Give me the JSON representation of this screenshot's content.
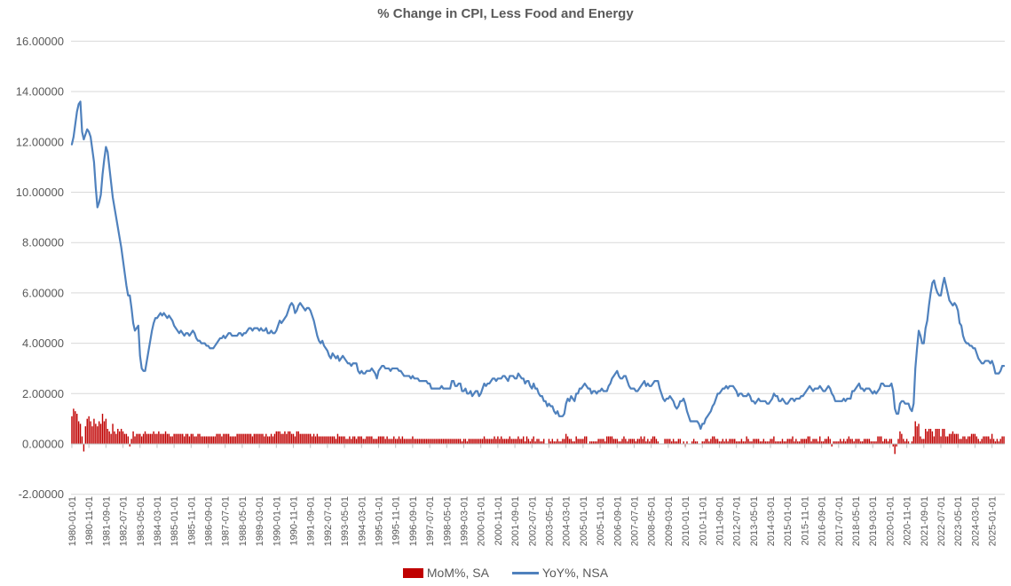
{
  "colors": {
    "background": "#FFFFFF",
    "title_text": "#595959",
    "axis_text": "#595959",
    "gridline": "#D9D9D9",
    "axis_line": "#BFBFBF",
    "bar_series": "#C00000",
    "line_series": "#4F81BD"
  },
  "chart_data": {
    "type": "bar+line combo",
    "title": "% Change in CPI, Less Food and Energy",
    "x_frequency": "monthly",
    "x_start": "1980-01",
    "x_end": "2025-08",
    "ylim": [
      -2,
      16
    ],
    "y_tick_step": 2,
    "grid": "horizontal",
    "legend_position": "bottom",
    "y_tick_labels": [
      "-2.00000",
      "0.00000",
      "2.00000",
      "4.00000",
      "6.00000",
      "8.00000",
      "10.00000",
      "12.00000",
      "14.00000",
      "16.00000"
    ],
    "x_tick_interval_months": 10,
    "x_tick_labels": [
      "1980-01-01",
      "1980-11-01",
      "1981-09-01",
      "1982-07-01",
      "1983-05-01",
      "1984-03-01",
      "1985-01-01",
      "1985-11-01",
      "1986-09-01",
      "1987-07-01",
      "1988-05-01",
      "1989-03-01",
      "1990-01-01",
      "1990-11-01",
      "1991-09-01",
      "1992-07-01",
      "1993-05-01",
      "1994-03-01",
      "1995-01-01",
      "1995-11-01",
      "1996-09-01",
      "1997-07-01",
      "1998-05-01",
      "1999-03-01",
      "2000-01-01",
      "2000-11-01",
      "2001-09-01",
      "2002-07-01",
      "2003-05-01",
      "2004-03-01",
      "2005-01-01",
      "2005-11-01",
      "2006-09-01",
      "2007-07-01",
      "2008-05-01",
      "2009-03-01",
      "2010-01-01",
      "2010-11-01",
      "2011-09-01",
      "2012-07-01",
      "2013-05-01",
      "2014-03-01",
      "2015-01-01",
      "2015-11-01",
      "2016-09-01",
      "2017-07-01",
      "2018-05-01",
      "2019-03-01",
      "2020-01-01",
      "2020-11-01",
      "2021-09-01",
      "2022-07-01",
      "2023-05-01",
      "2024-03-01",
      "2025-01-01"
    ],
    "series": [
      {
        "name": "MoM%, SA",
        "type": "bar",
        "color": "#C00000",
        "values": [
          1.1,
          1.4,
          1.3,
          1.2,
          0.9,
          0.8,
          0.3,
          -0.3,
          0.7,
          1.0,
          1.1,
          0.9,
          0.7,
          1.0,
          0.8,
          0.7,
          0.9,
          0.8,
          1.2,
          0.9,
          1.0,
          0.6,
          0.5,
          0.4,
          0.8,
          0.5,
          0.4,
          0.6,
          0.5,
          0.6,
          0.5,
          0.4,
          0.4,
          0.3,
          -0.1,
          0.2,
          0.5,
          0.3,
          0.4,
          0.4,
          0.4,
          0.3,
          0.4,
          0.5,
          0.4,
          0.4,
          0.4,
          0.4,
          0.5,
          0.4,
          0.4,
          0.5,
          0.4,
          0.4,
          0.4,
          0.5,
          0.4,
          0.4,
          0.3,
          0.3,
          0.4,
          0.4,
          0.4,
          0.4,
          0.4,
          0.4,
          0.3,
          0.4,
          0.4,
          0.3,
          0.4,
          0.4,
          0.3,
          0.3,
          0.4,
          0.4,
          0.3,
          0.3,
          0.3,
          0.3,
          0.3,
          0.3,
          0.3,
          0.3,
          0.3,
          0.4,
          0.4,
          0.4,
          0.3,
          0.4,
          0.4,
          0.4,
          0.4,
          0.3,
          0.3,
          0.3,
          0.3,
          0.4,
          0.4,
          0.4,
          0.4,
          0.4,
          0.4,
          0.4,
          0.4,
          0.4,
          0.3,
          0.4,
          0.4,
          0.4,
          0.4,
          0.4,
          0.4,
          0.3,
          0.4,
          0.3,
          0.3,
          0.4,
          0.3,
          0.4,
          0.5,
          0.5,
          0.5,
          0.4,
          0.4,
          0.5,
          0.4,
          0.5,
          0.5,
          0.4,
          0.4,
          0.3,
          0.5,
          0.5,
          0.4,
          0.4,
          0.4,
          0.4,
          0.4,
          0.4,
          0.4,
          0.3,
          0.4,
          0.3,
          0.4,
          0.3,
          0.3,
          0.3,
          0.3,
          0.3,
          0.3,
          0.3,
          0.3,
          0.3,
          0.3,
          0.2,
          0.4,
          0.3,
          0.3,
          0.3,
          0.3,
          0.2,
          0.2,
          0.3,
          0.2,
          0.3,
          0.3,
          0.2,
          0.3,
          0.3,
          0.3,
          0.2,
          0.2,
          0.3,
          0.3,
          0.3,
          0.3,
          0.2,
          0.2,
          0.2,
          0.3,
          0.3,
          0.3,
          0.3,
          0.2,
          0.3,
          0.2,
          0.2,
          0.2,
          0.3,
          0.2,
          0.2,
          0.3,
          0.2,
          0.3,
          0.2,
          0.2,
          0.2,
          0.2,
          0.2,
          0.3,
          0.2,
          0.2,
          0.2,
          0.2,
          0.2,
          0.2,
          0.2,
          0.2,
          0.2,
          0.2,
          0.2,
          0.2,
          0.2,
          0.2,
          0.2,
          0.2,
          0.2,
          0.2,
          0.2,
          0.2,
          0.2,
          0.2,
          0.2,
          0.2,
          0.2,
          0.2,
          0.2,
          0.2,
          0.1,
          0.2,
          0.2,
          0.1,
          0.2,
          0.2,
          0.2,
          0.2,
          0.2,
          0.2,
          0.2,
          0.2,
          0.2,
          0.3,
          0.2,
          0.2,
          0.2,
          0.2,
          0.2,
          0.3,
          0.2,
          0.3,
          0.2,
          0.3,
          0.2,
          0.2,
          0.2,
          0.2,
          0.3,
          0.2,
          0.2,
          0.2,
          0.2,
          0.3,
          0.2,
          0.2,
          0.3,
          0.1,
          0.3,
          0.2,
          0.1,
          0.2,
          0.3,
          0.1,
          0.2,
          0.2,
          0.1,
          0.1,
          0.2,
          0.0,
          0.0,
          0.2,
          0.1,
          0.2,
          0.1,
          0.1,
          0.2,
          0.1,
          0.1,
          0.2,
          0.2,
          0.4,
          0.3,
          0.2,
          0.2,
          0.1,
          0.1,
          0.3,
          0.2,
          0.2,
          0.2,
          0.2,
          0.3,
          0.3,
          0.0,
          0.1,
          0.1,
          0.1,
          0.1,
          0.1,
          0.2,
          0.2,
          0.2,
          0.2,
          0.1,
          0.3,
          0.3,
          0.3,
          0.3,
          0.2,
          0.2,
          0.2,
          0.1,
          0.1,
          0.2,
          0.3,
          0.2,
          0.1,
          0.2,
          0.2,
          0.2,
          0.2,
          0.1,
          0.2,
          0.2,
          0.3,
          0.2,
          0.3,
          0.1,
          0.2,
          0.1,
          0.2,
          0.3,
          0.3,
          0.2,
          0.1,
          0.0,
          0.0,
          0.0,
          0.2,
          0.2,
          0.2,
          0.2,
          0.1,
          0.2,
          0.1,
          0.1,
          0.2,
          0.2,
          0.0,
          0.1,
          -0.1,
          0.1,
          0.0,
          0.0,
          0.1,
          0.2,
          0.1,
          0.1,
          0.0,
          0.0,
          0.1,
          0.1,
          0.2,
          0.2,
          0.1,
          0.2,
          0.3,
          0.3,
          0.2,
          0.2,
          0.1,
          0.1,
          0.2,
          0.1,
          0.2,
          0.1,
          0.2,
          0.2,
          0.2,
          0.2,
          0.1,
          0.1,
          0.1,
          0.2,
          0.1,
          0.1,
          0.3,
          0.2,
          0.1,
          0.1,
          0.2,
          0.2,
          0.2,
          0.2,
          0.1,
          0.1,
          0.2,
          0.1,
          0.1,
          0.1,
          0.2,
          0.2,
          0.3,
          0.1,
          0.1,
          0.1,
          0.1,
          0.2,
          0.1,
          0.1,
          0.2,
          0.2,
          0.2,
          0.3,
          0.1,
          0.2,
          0.1,
          0.1,
          0.2,
          0.2,
          0.2,
          0.2,
          0.3,
          0.3,
          0.1,
          0.2,
          0.2,
          0.2,
          0.1,
          0.3,
          0.1,
          0.1,
          0.2,
          0.2,
          0.3,
          0.2,
          -0.1,
          0.1,
          0.1,
          0.1,
          0.1,
          0.2,
          0.1,
          0.2,
          0.1,
          0.2,
          0.3,
          0.2,
          0.2,
          0.1,
          0.2,
          0.2,
          0.2,
          0.1,
          0.1,
          0.2,
          0.2,
          0.2,
          0.2,
          0.1,
          0.1,
          0.1,
          0.1,
          0.3,
          0.3,
          0.3,
          0.1,
          0.2,
          0.2,
          0.1,
          0.2,
          0.2,
          -0.1,
          -0.4,
          -0.1,
          0.2,
          0.5,
          0.4,
          0.2,
          0.1,
          0.2,
          0.1,
          0.0,
          0.1,
          0.3,
          0.9,
          0.7,
          0.8,
          0.3,
          0.2,
          0.2,
          0.6,
          0.5,
          0.6,
          0.6,
          0.5,
          0.3,
          0.6,
          0.6,
          0.6,
          0.3,
          0.6,
          0.6,
          0.3,
          0.3,
          0.4,
          0.4,
          0.5,
          0.4,
          0.4,
          0.4,
          0.2,
          0.2,
          0.3,
          0.3,
          0.2,
          0.3,
          0.3,
          0.4,
          0.4,
          0.4,
          0.3,
          0.2,
          0.1,
          0.2,
          0.3,
          0.3,
          0.3,
          0.3,
          0.2,
          0.4,
          0.2,
          0.1,
          0.2,
          0.1,
          0.2,
          0.3,
          0.3
        ]
      },
      {
        "name": "YoY%, NSA",
        "type": "line",
        "color": "#4F81BD",
        "values": [
          11.9,
          12.2,
          12.7,
          13.2,
          13.5,
          13.6,
          12.4,
          12.1,
          12.3,
          12.5,
          12.4,
          12.2,
          11.7,
          11.2,
          10.2,
          9.4,
          9.6,
          9.9,
          10.7,
          11.3,
          11.8,
          11.6,
          11.0,
          10.4,
          9.8,
          9.4,
          9.0,
          8.6,
          8.2,
          7.8,
          7.3,
          6.8,
          6.3,
          5.9,
          5.9,
          5.4,
          4.8,
          4.5,
          4.6,
          4.7,
          3.5,
          3.0,
          2.9,
          2.9,
          3.3,
          3.7,
          4.1,
          4.5,
          4.8,
          5.0,
          5.0,
          5.1,
          5.2,
          5.1,
          5.2,
          5.1,
          5.0,
          5.1,
          5.0,
          4.9,
          4.7,
          4.6,
          4.5,
          4.4,
          4.5,
          4.4,
          4.3,
          4.4,
          4.4,
          4.3,
          4.4,
          4.5,
          4.4,
          4.2,
          4.1,
          4.1,
          4.0,
          4.0,
          4.0,
          3.9,
          3.9,
          3.8,
          3.8,
          3.8,
          3.9,
          4.0,
          4.1,
          4.2,
          4.2,
          4.3,
          4.2,
          4.3,
          4.4,
          4.4,
          4.3,
          4.3,
          4.3,
          4.3,
          4.4,
          4.4,
          4.3,
          4.4,
          4.4,
          4.5,
          4.6,
          4.6,
          4.5,
          4.6,
          4.6,
          4.6,
          4.5,
          4.6,
          4.5,
          4.5,
          4.6,
          4.4,
          4.4,
          4.5,
          4.4,
          4.4,
          4.5,
          4.7,
          4.9,
          4.8,
          4.9,
          5.0,
          5.1,
          5.3,
          5.5,
          5.6,
          5.5,
          5.2,
          5.3,
          5.5,
          5.6,
          5.5,
          5.4,
          5.3,
          5.4,
          5.4,
          5.3,
          5.1,
          4.9,
          4.6,
          4.3,
          4.1,
          4.0,
          4.1,
          3.9,
          3.8,
          3.7,
          3.5,
          3.4,
          3.6,
          3.5,
          3.4,
          3.5,
          3.3,
          3.4,
          3.5,
          3.4,
          3.3,
          3.2,
          3.2,
          3.1,
          3.2,
          3.2,
          3.2,
          2.9,
          2.8,
          2.9,
          2.8,
          2.8,
          2.9,
          2.9,
          2.9,
          3.0,
          2.9,
          2.8,
          2.6,
          2.9,
          3.0,
          3.1,
          3.1,
          3.0,
          3.0,
          3.0,
          2.9,
          3.0,
          3.0,
          3.0,
          3.0,
          2.9,
          2.9,
          2.8,
          2.7,
          2.7,
          2.7,
          2.7,
          2.6,
          2.7,
          2.6,
          2.6,
          2.6,
          2.5,
          2.5,
          2.5,
          2.5,
          2.5,
          2.4,
          2.4,
          2.2,
          2.2,
          2.2,
          2.2,
          2.2,
          2.2,
          2.3,
          2.2,
          2.2,
          2.2,
          2.2,
          2.2,
          2.5,
          2.5,
          2.3,
          2.3,
          2.4,
          2.4,
          2.1,
          2.1,
          2.2,
          2.0,
          2.0,
          2.1,
          1.9,
          2.0,
          2.1,
          2.1,
          1.9,
          2.0,
          2.2,
          2.4,
          2.3,
          2.4,
          2.4,
          2.5,
          2.6,
          2.6,
          2.5,
          2.6,
          2.6,
          2.6,
          2.7,
          2.7,
          2.6,
          2.5,
          2.7,
          2.7,
          2.7,
          2.6,
          2.6,
          2.8,
          2.7,
          2.6,
          2.6,
          2.4,
          2.5,
          2.5,
          2.3,
          2.2,
          2.4,
          2.2,
          2.2,
          2.0,
          1.9,
          1.9,
          1.7,
          1.7,
          1.5,
          1.6,
          1.5,
          1.5,
          1.3,
          1.2,
          1.3,
          1.1,
          1.1,
          1.1,
          1.2,
          1.6,
          1.8,
          1.7,
          1.9,
          1.8,
          1.7,
          2.0,
          2.0,
          2.2,
          2.2,
          2.3,
          2.4,
          2.3,
          2.2,
          2.2,
          2.0,
          2.1,
          2.1,
          2.0,
          2.1,
          2.1,
          2.2,
          2.1,
          2.1,
          2.1,
          2.3,
          2.4,
          2.6,
          2.7,
          2.8,
          2.9,
          2.7,
          2.6,
          2.6,
          2.7,
          2.7,
          2.5,
          2.3,
          2.2,
          2.2,
          2.2,
          2.1,
          2.1,
          2.2,
          2.3,
          2.4,
          2.5,
          2.3,
          2.4,
          2.3,
          2.3,
          2.4,
          2.5,
          2.5,
          2.5,
          2.2,
          2.0,
          1.8,
          1.7,
          1.8,
          1.8,
          1.9,
          1.8,
          1.7,
          1.5,
          1.4,
          1.5,
          1.7,
          1.7,
          1.8,
          1.6,
          1.3,
          1.1,
          0.9,
          0.9,
          0.9,
          0.9,
          0.9,
          0.8,
          0.6,
          0.8,
          0.8,
          1.0,
          1.1,
          1.2,
          1.3,
          1.5,
          1.6,
          1.8,
          2.0,
          2.0,
          2.1,
          2.2,
          2.2,
          2.3,
          2.2,
          2.3,
          2.3,
          2.3,
          2.2,
          2.1,
          1.9,
          2.0,
          2.0,
          1.9,
          1.9,
          1.9,
          2.0,
          1.9,
          1.7,
          1.7,
          1.6,
          1.7,
          1.8,
          1.7,
          1.7,
          1.7,
          1.7,
          1.6,
          1.6,
          1.7,
          1.8,
          2.0,
          1.9,
          1.9,
          1.7,
          1.7,
          1.8,
          1.7,
          1.6,
          1.6,
          1.7,
          1.8,
          1.8,
          1.7,
          1.8,
          1.8,
          1.8,
          1.9,
          1.9,
          2.0,
          2.1,
          2.2,
          2.3,
          2.2,
          2.1,
          2.2,
          2.2,
          2.2,
          2.3,
          2.2,
          2.1,
          2.1,
          2.2,
          2.3,
          2.2,
          2.0,
          1.9,
          1.7,
          1.7,
          1.7,
          1.7,
          1.7,
          1.8,
          1.7,
          1.8,
          1.8,
          1.8,
          2.1,
          2.1,
          2.2,
          2.3,
          2.4,
          2.2,
          2.2,
          2.1,
          2.2,
          2.2,
          2.2,
          2.1,
          2.0,
          2.1,
          2.0,
          2.1,
          2.2,
          2.4,
          2.4,
          2.3,
          2.3,
          2.3,
          2.3,
          2.4,
          2.1,
          1.4,
          1.2,
          1.2,
          1.6,
          1.7,
          1.7,
          1.6,
          1.6,
          1.6,
          1.4,
          1.3,
          1.6,
          3.0,
          3.8,
          4.5,
          4.3,
          4.0,
          4.0,
          4.6,
          4.9,
          5.5,
          6.0,
          6.4,
          6.5,
          6.2,
          6.0,
          5.9,
          5.9,
          6.3,
          6.6,
          6.3,
          6.0,
          5.7,
          5.6,
          5.5,
          5.6,
          5.5,
          5.3,
          4.8,
          4.7,
          4.3,
          4.1,
          4.0,
          4.0,
          3.9,
          3.9,
          3.8,
          3.8,
          3.6,
          3.4,
          3.3,
          3.2,
          3.2,
          3.3,
          3.3,
          3.3,
          3.2,
          3.3,
          3.1,
          2.8,
          2.8,
          2.8,
          2.9,
          3.1,
          3.1
        ]
      }
    ]
  }
}
